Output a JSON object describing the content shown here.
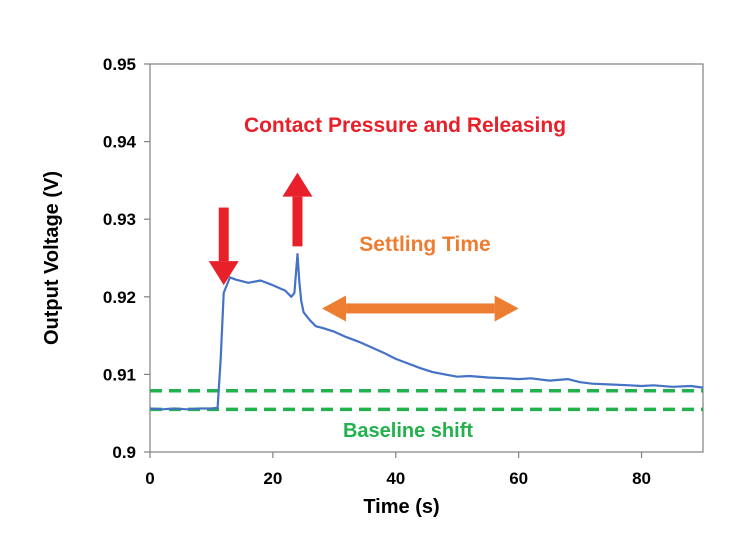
{
  "chart_data": {
    "type": "line",
    "title": "",
    "xlabel": "Time (s)",
    "ylabel": "Output Voltage (V)",
    "xlim": [
      0,
      90
    ],
    "ylim": [
      0.9,
      0.95
    ],
    "x_ticks": [
      0,
      20,
      40,
      60,
      80
    ],
    "x_tick_labels": [
      "0",
      "20",
      "40",
      "60",
      "80"
    ],
    "y_ticks": [
      0.9,
      0.91,
      0.92,
      0.93,
      0.94,
      0.95
    ],
    "y_tick_labels": [
      "0.9",
      "0.91",
      "0.92",
      "0.93",
      "0.94",
      "0.95"
    ],
    "grid": false,
    "series": [
      {
        "color": "#4472C4",
        "x": [
          0,
          2,
          4,
          6,
          8,
          10,
          11,
          11.5,
          12,
          13,
          14,
          16,
          18,
          20,
          22,
          23,
          23.5,
          24,
          24.3,
          24.6,
          25,
          26,
          27,
          28,
          30,
          32,
          34,
          36,
          38,
          40,
          42,
          44,
          46,
          48,
          50,
          52,
          55,
          58,
          60,
          62,
          65,
          68,
          70,
          72,
          75,
          78,
          80,
          82,
          85,
          88,
          90
        ],
        "y": [
          0.9056,
          0.9055,
          0.9056,
          0.9055,
          0.9056,
          0.9056,
          0.9057,
          0.912,
          0.9205,
          0.9225,
          0.9222,
          0.9218,
          0.9221,
          0.9215,
          0.9208,
          0.92,
          0.9205,
          0.9255,
          0.922,
          0.9195,
          0.918,
          0.917,
          0.9162,
          0.916,
          0.9155,
          0.9148,
          0.9142,
          0.9135,
          0.9128,
          0.912,
          0.9114,
          0.9108,
          0.9103,
          0.91,
          0.9097,
          0.9098,
          0.9096,
          0.9095,
          0.9094,
          0.9095,
          0.9092,
          0.9094,
          0.909,
          0.9088,
          0.9087,
          0.9086,
          0.9085,
          0.9086,
          0.9084,
          0.9085,
          0.9083
        ]
      }
    ],
    "reference_lines": [
      {
        "y": 0.9079,
        "color": "#22B14C",
        "style": "dashed"
      },
      {
        "y": 0.9055,
        "color": "#22B14C",
        "style": "dashed"
      }
    ],
    "annotations": {
      "contact_label": {
        "text": "Contact Pressure and Releasing",
        "color": "#E8202A"
      },
      "settling_label": {
        "text": "Settling Time",
        "color": "#ED7D31"
      },
      "baseline_label": {
        "text": "Baseline shift",
        "color": "#22B14C"
      },
      "down_arrow": {
        "x": 12,
        "y_from": 0.9315,
        "y_to": 0.9215,
        "color": "#E8202A"
      },
      "up_arrow": {
        "x": 24,
        "y_from": 0.9265,
        "y_to": 0.936,
        "color": "#E8202A"
      },
      "settling_arrow": {
        "x_from": 28,
        "x_to": 60,
        "y": 0.9185,
        "color": "#ED7D31"
      }
    }
  }
}
